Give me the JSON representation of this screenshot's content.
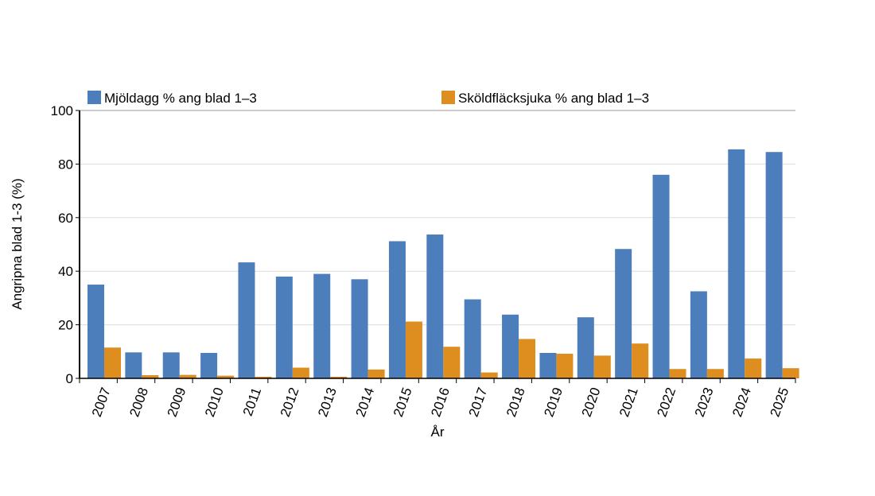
{
  "chart_data": {
    "type": "bar",
    "xlabel": "År",
    "ylabel": "Angripna blad 1-3 (%)",
    "ylim": [
      0,
      100
    ],
    "yticks": [
      0,
      20,
      40,
      60,
      80,
      100
    ],
    "grid": true,
    "legend_position": "top",
    "categories": [
      "2007",
      "2008",
      "2009",
      "2010",
      "2011",
      "2012",
      "2013",
      "2014",
      "2015",
      "2016",
      "2017",
      "2018",
      "2019",
      "2020",
      "2021",
      "2022",
      "2023",
      "2024",
      "2025"
    ],
    "series": [
      {
        "name": "Mjöldagg % ang blad 1–3",
        "color": "#4c7ebc",
        "values": [
          35,
          9.7,
          9.7,
          9.5,
          43.3,
          38,
          39,
          37,
          51.2,
          53.7,
          29.5,
          23.8,
          9.5,
          22.8,
          48.3,
          76,
          32.5,
          85.5,
          84.5
        ]
      },
      {
        "name": "Sköldfläcksjuka % ang blad 1–3",
        "color": "#de8e1f",
        "values": [
          11.5,
          1.2,
          1.3,
          1,
          0.6,
          4,
          0.6,
          3.3,
          21.2,
          11.8,
          2.2,
          14.7,
          9.2,
          8.5,
          13,
          3.5,
          3.5,
          7.4,
          3.8
        ]
      }
    ]
  }
}
